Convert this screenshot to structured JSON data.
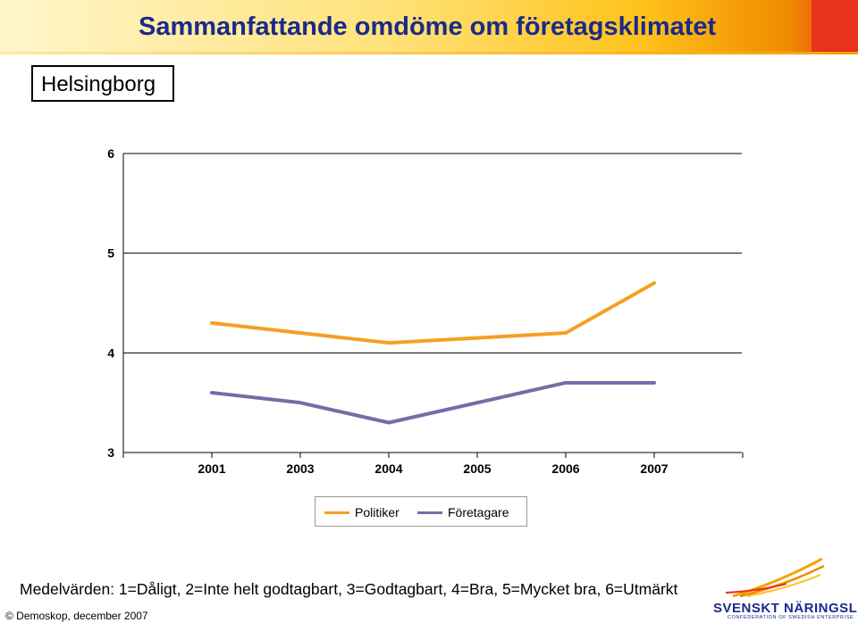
{
  "header": {
    "title": "Sammanfattande omdöme om företagsklimatet",
    "city": "Helsingborg"
  },
  "chart_data": {
    "type": "line",
    "categories": [
      "2001",
      "2003",
      "2004",
      "2005",
      "2006",
      "2007"
    ],
    "ylim": [
      3,
      6
    ],
    "yticks": [
      "3",
      "4",
      "5",
      "6"
    ],
    "grid": true,
    "legend_position": "bottom",
    "series": [
      {
        "name": "Politiker",
        "color": "#f4a023",
        "values": [
          4.3,
          4.2,
          4.1,
          4.15,
          4.2,
          4.7
        ]
      },
      {
        "name": "Företagare",
        "color": "#6f6fa8",
        "values": [
          3.6,
          3.5,
          3.3,
          3.5,
          3.7,
          3.7
        ]
      }
    ]
  },
  "footer": {
    "note": "Medelvärden: 1=Dåligt, 2=Inte helt godtagbart, 3=Godtagbart, 4=Bra, 5=Mycket bra, 6=Utmärkt",
    "copyright": "© Demoskop, december 2007",
    "logo_name": "SVENSKT NÄRINGSLIV",
    "logo_sub": "CONFEDERATION OF SWEDISH ENTERPRISE"
  },
  "colors": {
    "title": "#1a2a8a",
    "politiker": "#f4a023",
    "foretagare": "#6f6fa8"
  }
}
